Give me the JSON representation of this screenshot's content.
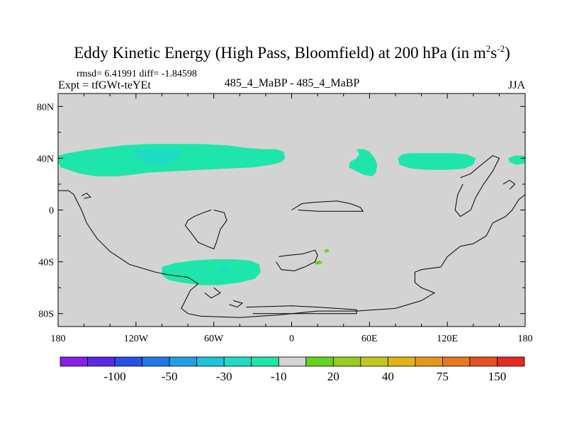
{
  "chart_data": {
    "type": "heatmap",
    "title": "Eddy Kinetic Energy (High Pass, Bloomfield) at 200 hPa (in m",
    "title_units": {
      "base": "s",
      "sup1": "2",
      "sup2": "-2",
      "close": ")"
    },
    "stats_line": "rmsd= 6.41991 diff= -1.84598",
    "expt_line": "Expt = tfGWt-teYEt",
    "center_label": "485_4_MaBP - 485_4_MaBP",
    "season": "JJA",
    "x_ticks": [
      "180",
      "120W",
      "60W",
      "0",
      "60E",
      "120E",
      "180"
    ],
    "x_tick_values": [
      -180,
      -120,
      -60,
      0,
      60,
      120,
      180
    ],
    "y_ticks": [
      "80N",
      "40N",
      "0",
      "40S",
      "80S"
    ],
    "y_tick_values": [
      80,
      40,
      0,
      -40,
      -80
    ],
    "xlim": [
      -180,
      180
    ],
    "ylim": [
      -90,
      90
    ],
    "background_color": "#d3d3d3",
    "colorbar": {
      "labels": [
        "-100",
        "-50",
        "-30",
        "-10",
        "20",
        "40",
        "75",
        "150"
      ],
      "colors": [
        "#8a1ee6",
        "#5a28e6",
        "#2850e6",
        "#1e78e6",
        "#1ea0e6",
        "#1ec3dc",
        "#1edcc3",
        "#1ee6aa",
        "#d3d3d3",
        "#64d21e",
        "#96cd1e",
        "#c3c81e",
        "#e1b414",
        "#e6961e",
        "#e6781e",
        "#e6501e",
        "#e6281e"
      ]
    },
    "regions": [
      {
        "level": "-10",
        "color": "#1ee6aa",
        "points": [
          [
            -180,
            42
          ],
          [
            -172,
            44
          ],
          [
            -160,
            46
          ],
          [
            -145,
            48
          ],
          [
            -130,
            50
          ],
          [
            -110,
            51
          ],
          [
            -90,
            51
          ],
          [
            -70,
            51
          ],
          [
            -50,
            50
          ],
          [
            -35,
            48
          ],
          [
            -22,
            47
          ],
          [
            -12,
            47
          ],
          [
            -6,
            45
          ],
          [
            -5,
            40
          ],
          [
            -8,
            37
          ],
          [
            -12,
            36
          ],
          [
            -15,
            35
          ],
          [
            -30,
            33
          ],
          [
            -50,
            32
          ],
          [
            -70,
            31
          ],
          [
            -90,
            30
          ],
          [
            -110,
            29
          ],
          [
            -125,
            27
          ],
          [
            -135,
            26
          ],
          [
            -150,
            26
          ],
          [
            -163,
            28
          ],
          [
            -172,
            31
          ],
          [
            -178,
            33
          ],
          [
            -180,
            37
          ]
        ]
      },
      {
        "level": "-30",
        "color": "#1edcc3",
        "points": [
          [
            -120,
            48
          ],
          [
            -110,
            47
          ],
          [
            -90,
            47
          ],
          [
            -85,
            45
          ],
          [
            -88,
            40
          ],
          [
            -95,
            36
          ],
          [
            -103,
            34
          ],
          [
            -112,
            36
          ],
          [
            -118,
            40
          ],
          [
            -122,
            44
          ]
        ]
      },
      {
        "level": "-10",
        "color": "#1ee6aa",
        "points": [
          [
            50,
            47
          ],
          [
            56,
            47
          ],
          [
            60,
            45
          ],
          [
            64,
            40
          ],
          [
            66,
            35
          ],
          [
            65,
            29
          ],
          [
            62,
            26
          ],
          [
            56,
            27
          ],
          [
            50,
            30
          ],
          [
            44,
            33
          ],
          [
            45,
            37
          ],
          [
            50,
            40
          ],
          [
            52,
            43
          ]
        ]
      },
      {
        "level": "-10",
        "color": "#1ee6aa",
        "points": [
          [
            85,
            43
          ],
          [
            92,
            44
          ],
          [
            100,
            44
          ],
          [
            112,
            44
          ],
          [
            125,
            44
          ],
          [
            135,
            43
          ],
          [
            142,
            40
          ],
          [
            140,
            35
          ],
          [
            133,
            32
          ],
          [
            120,
            31
          ],
          [
            105,
            31
          ],
          [
            92,
            32
          ],
          [
            83,
            35
          ],
          [
            82,
            40
          ]
        ]
      },
      {
        "level": "-10",
        "color": "#1ee6aa",
        "points": [
          [
            167,
            40
          ],
          [
            172,
            42
          ],
          [
            180,
            42
          ],
          [
            180,
            36
          ],
          [
            173,
            35
          ],
          [
            168,
            37
          ]
        ]
      },
      {
        "level": "-10",
        "color": "#1ee6aa",
        "points": [
          [
            -100,
            -44
          ],
          [
            -90,
            -41
          ],
          [
            -75,
            -39
          ],
          [
            -60,
            -38
          ],
          [
            -45,
            -38
          ],
          [
            -32,
            -39
          ],
          [
            -25,
            -42
          ],
          [
            -24,
            -48
          ],
          [
            -28,
            -53
          ],
          [
            -40,
            -56
          ],
          [
            -55,
            -58
          ],
          [
            -70,
            -58
          ],
          [
            -85,
            -56
          ],
          [
            -95,
            -54
          ],
          [
            -100,
            -50
          ]
        ]
      },
      {
        "level": "-30",
        "color": "#1edcc3",
        "points": [
          [
            -55,
            -45
          ],
          [
            -50,
            -44
          ],
          [
            -48,
            -47
          ],
          [
            -52,
            -49
          ],
          [
            -56,
            -48
          ]
        ]
      },
      {
        "level": "20",
        "color": "#64d21e",
        "points": [
          [
            18,
            -40
          ],
          [
            22,
            -39
          ],
          [
            24,
            -41
          ],
          [
            21,
            -42
          ],
          [
            18,
            -42
          ]
        ]
      },
      {
        "level": "20",
        "color": "#64d21e",
        "points": [
          [
            25,
            -31
          ],
          [
            28,
            -30
          ],
          [
            29,
            -32
          ],
          [
            26,
            -33
          ]
        ]
      }
    ],
    "coastlines": [
      [
        [
          -180,
          15
        ],
        [
          -172,
          15
        ],
        [
          -168,
          12
        ],
        [
          -162,
          0
        ],
        [
          -158,
          -10
        ],
        [
          -150,
          -22
        ],
        [
          -140,
          -32
        ],
        [
          -125,
          -42
        ],
        [
          -105,
          -48
        ],
        [
          -95,
          -50
        ],
        [
          -80,
          -52
        ],
        [
          -72,
          -57
        ],
        [
          -78,
          -62
        ],
        [
          -82,
          -70
        ],
        [
          -85,
          -76
        ],
        [
          -80,
          -80
        ],
        [
          -70,
          -82
        ],
        [
          -40,
          -83
        ],
        [
          -10,
          -81
        ],
        [
          20,
          -78
        ],
        [
          50,
          -78
        ],
        [
          80,
          -76
        ],
        [
          100,
          -70
        ],
        [
          110,
          -64
        ],
        [
          100,
          -60
        ],
        [
          95,
          -56
        ],
        [
          95,
          -48
        ],
        [
          100,
          -46
        ],
        [
          115,
          -44
        ],
        [
          120,
          -36
        ],
        [
          130,
          -28
        ],
        [
          140,
          -26
        ],
        [
          150,
          -20
        ],
        [
          155,
          -10
        ],
        [
          165,
          -5
        ],
        [
          170,
          0
        ],
        [
          175,
          8
        ],
        [
          180,
          12
        ]
      ],
      [
        [
          -60,
          0
        ],
        [
          -52,
          -2
        ],
        [
          -50,
          -8
        ],
        [
          -55,
          -15
        ],
        [
          -58,
          -25
        ],
        [
          -60,
          -30
        ],
        [
          -65,
          -28
        ],
        [
          -72,
          -25
        ],
        [
          -78,
          -17
        ],
        [
          -82,
          -12
        ],
        [
          -80,
          -8
        ],
        [
          -75,
          -5
        ],
        [
          -68,
          -2
        ],
        [
          -62,
          0
        ]
      ],
      [
        [
          0,
          0
        ],
        [
          8,
          5
        ],
        [
          18,
          6
        ],
        [
          35,
          7
        ],
        [
          45,
          5
        ],
        [
          53,
          2
        ],
        [
          55,
          -1
        ],
        [
          40,
          -1
        ],
        [
          20,
          -1
        ],
        [
          5,
          0
        ]
      ],
      [
        [
          -10,
          -36
        ],
        [
          -3,
          -35
        ],
        [
          8,
          -34
        ],
        [
          18,
          -31
        ],
        [
          20,
          -35
        ],
        [
          18,
          -40
        ],
        [
          10,
          -44
        ],
        [
          2,
          -47
        ],
        [
          -8,
          -46
        ],
        [
          -12,
          -40
        ]
      ],
      [
        [
          -60,
          -60
        ],
        [
          -55,
          -64
        ],
        [
          -62,
          -68
        ],
        [
          -67,
          -64
        ]
      ],
      [
        [
          -45,
          -70
        ],
        [
          -38,
          -72
        ],
        [
          -42,
          -75
        ],
        [
          -48,
          -73
        ]
      ],
      [
        [
          -35,
          -75
        ],
        [
          0,
          -74
        ],
        [
          20,
          -75
        ],
        [
          50,
          -77
        ],
        [
          50,
          -80
        ],
        [
          20,
          -80
        ],
        [
          -30,
          -80
        ]
      ],
      [
        [
          -162,
          11
        ],
        [
          -158,
          13
        ],
        [
          -155,
          10
        ],
        [
          -160,
          9
        ]
      ],
      [
        [
          130,
          25
        ],
        [
          138,
          28
        ],
        [
          145,
          34
        ],
        [
          150,
          38
        ],
        [
          155,
          42
        ],
        [
          160,
          40
        ],
        [
          155,
          30
        ],
        [
          148,
          20
        ],
        [
          142,
          10
        ],
        [
          138,
          0
        ],
        [
          130,
          -5
        ],
        [
          126,
          0
        ],
        [
          128,
          12
        ],
        [
          132,
          20
        ]
      ],
      [
        [
          163,
          20
        ],
        [
          168,
          23
        ],
        [
          172,
          20
        ],
        [
          168,
          16
        ]
      ]
    ]
  }
}
